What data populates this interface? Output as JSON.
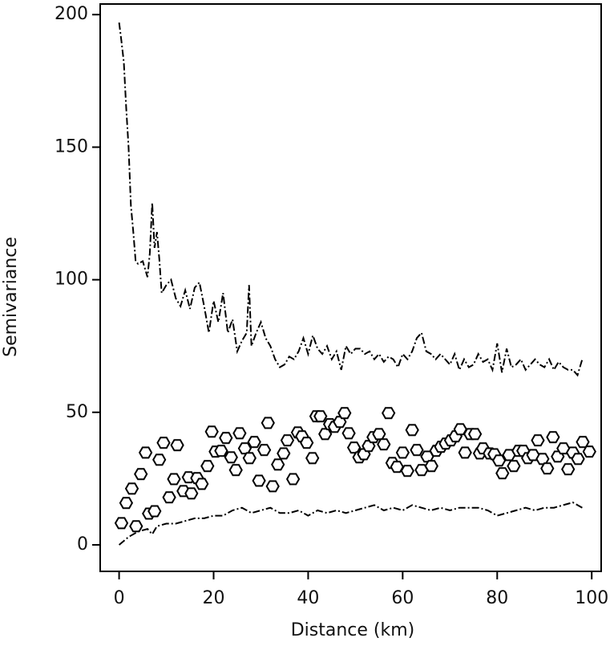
{
  "chart_data": {
    "type": "scatter",
    "xlabel": "Distance (km)",
    "ylabel": "Semivariance",
    "xlim": [
      -4,
      102
    ],
    "ylim": [
      -10,
      204
    ],
    "xticks": [
      0,
      20,
      40,
      60,
      80,
      100
    ],
    "yticks": [
      0,
      50,
      100,
      150,
      200
    ],
    "grid": false,
    "series": [
      {
        "type": "points",
        "marker": "hexagon",
        "color": "#000000",
        "x": [
          0.5,
          1.5,
          2.7,
          3.6,
          4.6,
          5.6,
          6.3,
          7.5,
          8.5,
          9.4,
          10.6,
          11.6,
          12.3,
          13.6,
          14.7,
          15.3,
          16.5,
          17.5,
          18.7,
          19.6,
          20.4,
          21.6,
          22.6,
          23.7,
          24.7,
          25.5,
          26.6,
          27.6,
          28.6,
          29.6,
          30.7,
          31.5,
          32.5,
          33.6,
          34.8,
          35.6,
          36.8,
          37.8,
          38.7,
          39.7,
          40.9,
          41.7,
          42.6,
          43.6,
          44.6,
          45.6,
          46.7,
          47.7,
          48.6,
          49.7,
          50.8,
          51.8,
          52.8,
          53.8,
          55,
          56,
          57,
          57.8,
          58.8,
          60,
          61,
          62,
          63,
          64,
          65.2,
          66.1,
          67.1,
          68.1,
          69.1,
          70.2,
          71.2,
          72.2,
          73.2,
          74.3,
          75.3,
          76.3,
          77,
          78.4,
          79.4,
          80.4,
          81.1,
          82.5,
          83.5,
          84.5,
          85.5,
          86.5,
          87.6,
          88.6,
          89.6,
          90.6,
          91.8,
          92.8,
          94,
          95,
          96,
          97.1,
          98.1,
          99.5
        ],
        "values": [
          8.2,
          15.8,
          21.2,
          7,
          26.7,
          34.8,
          11.8,
          12.7,
          32.1,
          38.5,
          17.9,
          24.8,
          37.6,
          20.3,
          25.5,
          19.4,
          25.2,
          23,
          29.7,
          42.7,
          35.2,
          35.5,
          40.3,
          33,
          28.2,
          42.1,
          36.4,
          32.7,
          38.8,
          24.2,
          35.8,
          46,
          22.1,
          30.3,
          34.5,
          39.4,
          24.8,
          42.4,
          40.9,
          38.5,
          32.7,
          48.5,
          48.5,
          41.8,
          45.5,
          44.5,
          46.4,
          49.7,
          42.1,
          36.7,
          33,
          34.2,
          37.3,
          40.6,
          41.8,
          37.9,
          49.7,
          30.9,
          29.4,
          34.8,
          27.9,
          43.3,
          35.8,
          28.2,
          33.3,
          29.7,
          35.5,
          37,
          38.2,
          39.4,
          40.9,
          43.6,
          34.8,
          41.8,
          41.8,
          34.5,
          36.4,
          34.5,
          34.2,
          31.8,
          27,
          33.9,
          29.7,
          35.5,
          35.5,
          32.7,
          33.9,
          39.4,
          32.4,
          28.8,
          40.6,
          33.3,
          36.4,
          28.5,
          34.8,
          32.4,
          38.8,
          35.2
        ]
      },
      {
        "type": "line",
        "dash": "9 3 2 3",
        "color": "#000000",
        "x": [
          0,
          0.5,
          1,
          1.5,
          2,
          2.5,
          3,
          3.5,
          4,
          5,
          6,
          6.5,
          7,
          7.5,
          8,
          8.5,
          9,
          10,
          11,
          12,
          13,
          14,
          15,
          16,
          17,
          18,
          19,
          20,
          21,
          22,
          23,
          24,
          25,
          26,
          27,
          27.5,
          28,
          29,
          30,
          31,
          32,
          33,
          34,
          35,
          36,
          37,
          38,
          39,
          40,
          41,
          42,
          43,
          44,
          45,
          46,
          47,
          48,
          49,
          50,
          51,
          52,
          53,
          54,
          55,
          56,
          57,
          58,
          59,
          60,
          61,
          62,
          63,
          64,
          65,
          66,
          67,
          68,
          69,
          70,
          71,
          72,
          73,
          74,
          75,
          76,
          77,
          78,
          79,
          80,
          81,
          82,
          83,
          84,
          85,
          86,
          87,
          88,
          89,
          90,
          91,
          92,
          93,
          94,
          95,
          96,
          97,
          98
        ],
        "values": [
          197,
          190,
          182,
          165,
          150,
          128,
          118,
          107,
          106,
          107,
          101,
          110,
          129,
          112,
          118,
          108,
          95,
          98,
          100,
          93,
          90,
          96,
          89,
          97,
          99,
          90,
          80,
          92,
          84,
          95,
          80,
          85,
          73,
          77,
          80,
          98,
          75,
          80,
          84,
          78,
          75,
          70,
          67,
          68,
          71,
          70,
          73,
          78,
          72,
          79,
          74,
          72,
          75,
          70,
          73,
          66,
          75,
          72,
          74,
          74,
          72,
          73,
          70,
          72,
          69,
          71,
          70,
          67,
          72,
          70,
          73,
          78,
          80,
          73,
          72,
          70,
          72,
          70,
          68,
          72,
          66,
          70,
          67,
          68,
          72,
          69,
          70,
          66,
          76,
          65,
          74,
          67,
          68,
          70,
          66,
          68,
          70,
          68,
          67,
          70,
          66,
          69,
          67,
          66,
          66,
          64,
          70
        ]
      },
      {
        "type": "line",
        "dash": "9 3 2 3",
        "color": "#000000",
        "x": [
          0,
          2,
          4,
          6,
          7,
          8,
          10,
          12,
          14,
          16,
          18,
          20,
          22,
          24,
          26,
          28,
          30,
          32,
          34,
          36,
          38,
          40,
          42,
          44,
          46,
          48,
          50,
          52,
          54,
          56,
          58,
          60,
          62,
          64,
          66,
          68,
          70,
          72,
          74,
          76,
          78,
          80,
          82,
          84,
          86,
          88,
          90,
          92,
          94,
          96,
          98
        ],
        "values": [
          0,
          3,
          5,
          6,
          4,
          7,
          8,
          8,
          9,
          10,
          10,
          11,
          11,
          13,
          14,
          12,
          13,
          14,
          12,
          12,
          13,
          11,
          13,
          12,
          13,
          12,
          13,
          14,
          15,
          13,
          14,
          13,
          15,
          14,
          13,
          14,
          13,
          14,
          14,
          14,
          13,
          11,
          12,
          13,
          14,
          13,
          14,
          14,
          15,
          16,
          14
        ]
      }
    ]
  }
}
